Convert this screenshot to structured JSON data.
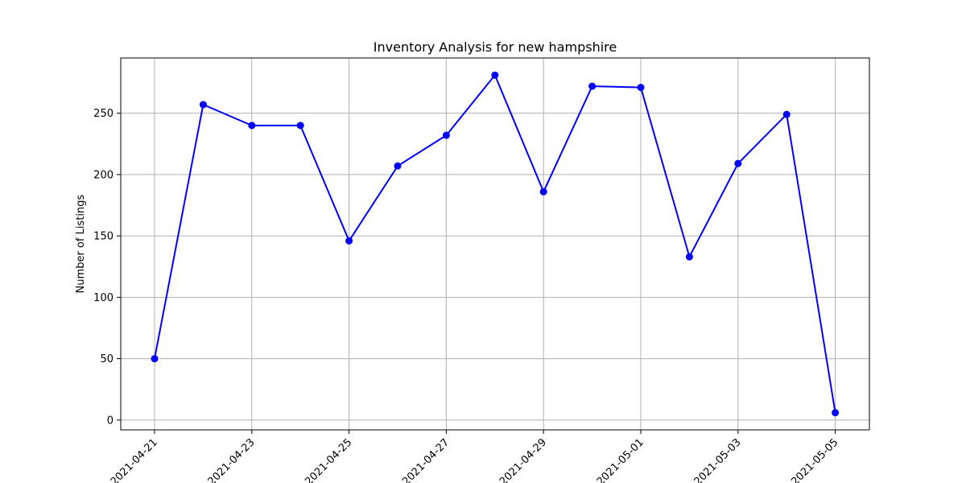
{
  "chart_data": {
    "type": "line",
    "title": "Inventory Analysis for new hampshire",
    "xlabel": "",
    "ylabel": "Number of Listings",
    "x": [
      "2021-04-21",
      "2021-04-22",
      "2021-04-23",
      "2021-04-24",
      "2021-04-25",
      "2021-04-26",
      "2021-04-27",
      "2021-04-28",
      "2021-04-29",
      "2021-04-30",
      "2021-05-01",
      "2021-05-02",
      "2021-05-03",
      "2021-05-04",
      "2021-05-05"
    ],
    "series": [
      {
        "values": [
          50,
          257,
          240,
          240,
          146,
          207,
          232,
          281,
          186,
          272,
          271,
          133,
          209,
          249,
          6
        ],
        "color": "#0000ff",
        "marker": "circle"
      }
    ],
    "x_ticks": [
      "2021-04-21",
      "2021-04-23",
      "2021-04-25",
      "2021-04-27",
      "2021-04-29",
      "2021-05-01",
      "2021-05-03",
      "2021-05-05"
    ],
    "y_ticks": [
      0,
      50,
      100,
      150,
      200,
      250
    ],
    "ylim": [
      -8,
      295
    ],
    "grid": true,
    "grid_color": "#b0b0b0"
  }
}
